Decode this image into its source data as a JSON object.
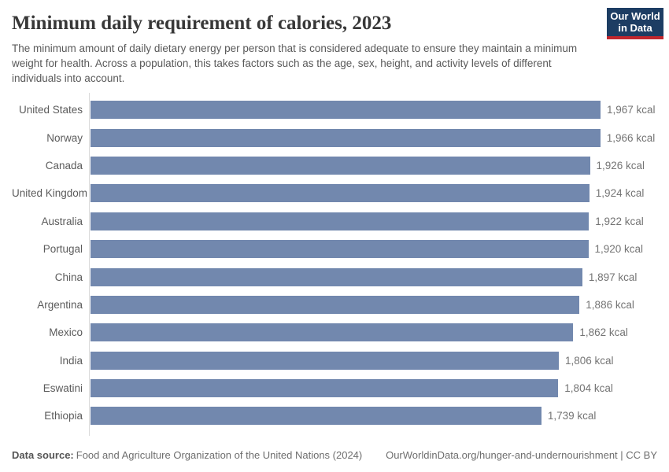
{
  "header": {
    "title": "Minimum daily requirement of calories, 2023",
    "subtitle": "The minimum amount of daily dietary energy per person that is considered adequate to ensure they maintain a minimum weight for health. Across a population, this takes factors such as the age, sex, height, and activity levels of different individuals into account.",
    "logo_line1": "Our World",
    "logo_line2": "in Data"
  },
  "chart_data": {
    "type": "bar",
    "orientation": "horizontal",
    "title": "Minimum daily requirement of calories, 2023",
    "unit": "kcal",
    "categories": [
      "United States",
      "Norway",
      "Canada",
      "United Kingdom",
      "Australia",
      "Portugal",
      "China",
      "Argentina",
      "Mexico",
      "India",
      "Eswatini",
      "Ethiopia"
    ],
    "values": [
      1967,
      1966,
      1926,
      1924,
      1922,
      1920,
      1897,
      1886,
      1862,
      1806,
      1804,
      1739
    ],
    "value_labels": [
      "1,967 kcal",
      "1,966 kcal",
      "1,926 kcal",
      "1,924 kcal",
      "1,922 kcal",
      "1,920 kcal",
      "1,897 kcal",
      "1,886 kcal",
      "1,862 kcal",
      "1,806 kcal",
      "1,804 kcal",
      "1,739 kcal"
    ],
    "xlim": [
      0,
      1967
    ],
    "grid": false,
    "legend": "none",
    "bar_color": "#7288ae",
    "axis_color": "#dadada"
  },
  "footer": {
    "datasource_label": "Data source:",
    "datasource_text": "Food and Agriculture Organization of the United Nations (2024)",
    "link": "OurWorldinData.org/hunger-and-undernourishment | CC BY"
  },
  "colors": {
    "logo_background": "#1d3d63",
    "logo_accent_red": "#c1272d",
    "title_text": "#383838",
    "label_text": "#5b5b5b",
    "value_text": "#747474"
  }
}
